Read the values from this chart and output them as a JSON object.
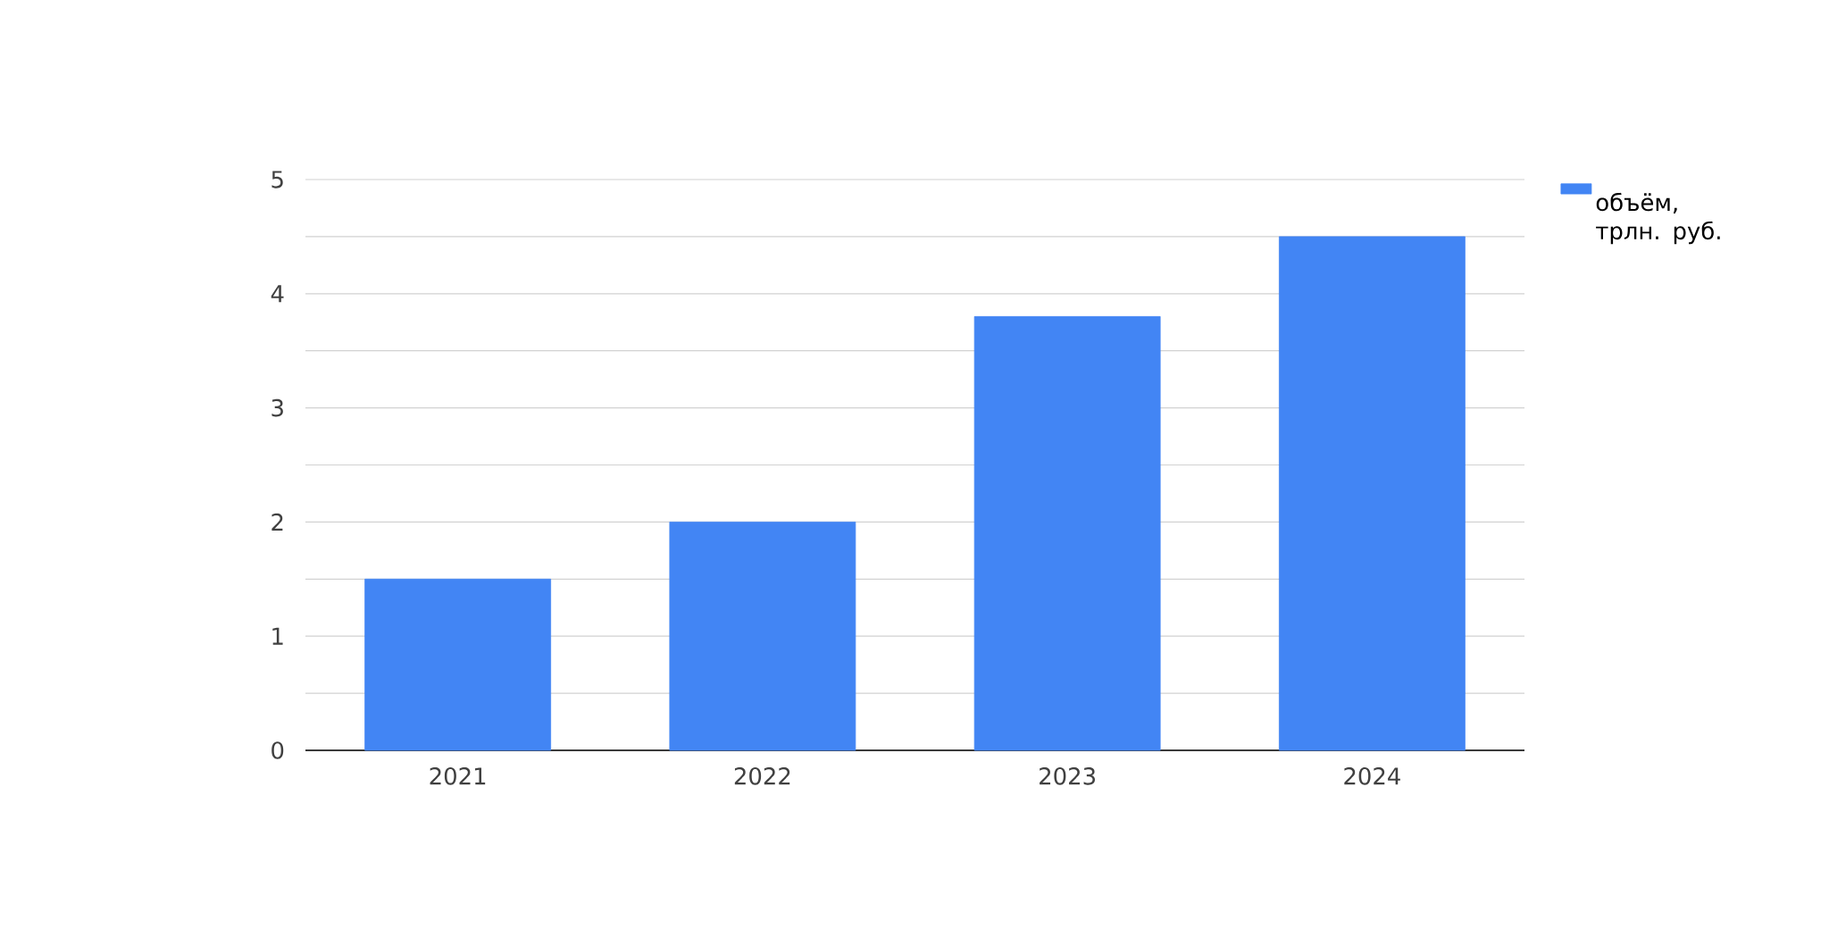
{
  "chart_data": {
    "type": "bar",
    "categories": [
      "2021",
      "2022",
      "2023",
      "2024"
    ],
    "series": [
      {
        "name": "объём, трлн. руб.",
        "color": "#4285f4",
        "values": [
          1.5,
          2.0,
          3.8,
          4.5
        ]
      }
    ],
    "ylim": [
      0,
      5
    ],
    "yticks": [
      0,
      {
        "value": 0.5,
        "label": null
      },
      1,
      {
        "value": 1.5,
        "label": null
      },
      2,
      {
        "value": 2.5,
        "label": null
      },
      3,
      {
        "value": 3.5,
        "label": null
      },
      4,
      {
        "value": 4.5,
        "label": null
      },
      5
    ],
    "grid": "y",
    "legend": "top right"
  }
}
